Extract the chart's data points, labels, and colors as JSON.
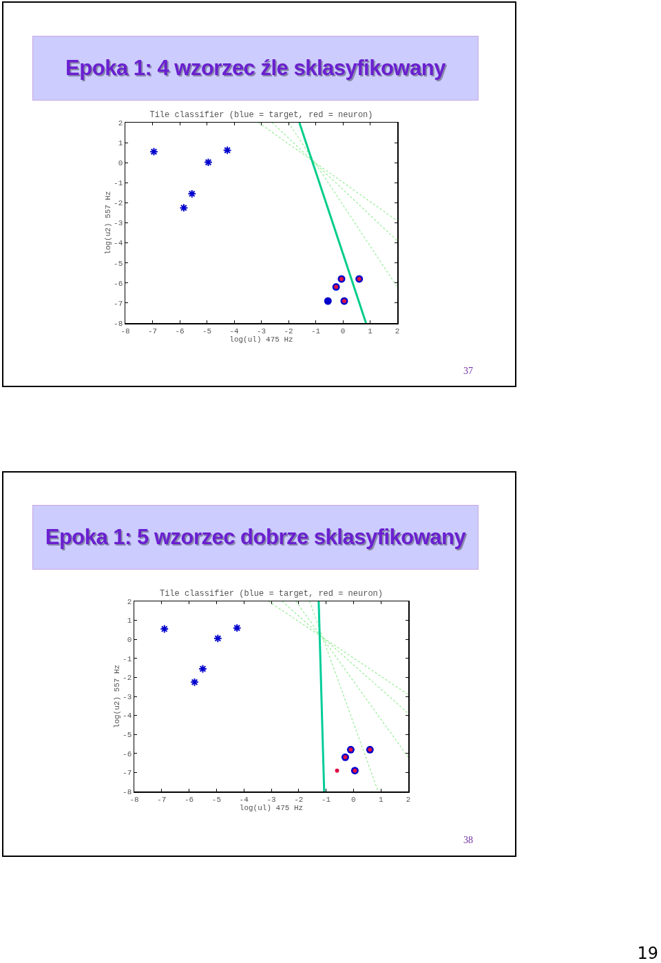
{
  "chart_data": [
    {
      "type": "scatter",
      "title": "Epoka 1: 4 wzorzec źle sklasyfikowany",
      "subtitle": "Tile classifier (blue = target, red = neuron)",
      "xlabel": "log(ul) 475 Hz",
      "ylabel": "log(u2) 557 Hz",
      "xlim": [
        -8,
        2
      ],
      "ylim": [
        -8,
        2
      ],
      "xticks": [
        -8,
        -7,
        -6,
        -5,
        -4,
        -3,
        -2,
        -1,
        0,
        1,
        2
      ],
      "yticks": [
        -8,
        -7,
        -6,
        -5,
        -4,
        -3,
        -2,
        -1,
        0,
        1,
        2
      ],
      "grid": false,
      "legend": false,
      "annotations": [
        "37"
      ],
      "series": [
        {
          "type": "line",
          "color": "#99ee99",
          "line_style": "dotted",
          "x": [
            -3.1,
            2
          ],
          "values": [
            2,
            -2.9
          ]
        },
        {
          "type": "line",
          "color": "#99ee99",
          "line_style": "dotted",
          "x": [
            -2.6,
            2
          ],
          "values": [
            2,
            -3.9
          ]
        },
        {
          "type": "line",
          "color": "#99ee99",
          "line_style": "dotted",
          "x": [
            -2.0,
            2
          ],
          "values": [
            2,
            -6.2
          ]
        },
        {
          "type": "line",
          "color": "#00cc88",
          "line_style": "solid",
          "x": [
            -1.6,
            0.85
          ],
          "values": [
            2,
            -8
          ]
        },
        {
          "type": "scatter",
          "color": "#0000cc",
          "marker": "cross",
          "x": [
            -6.95,
            -5.85,
            -5.55,
            -4.95,
            -4.25
          ],
          "values": [
            0.55,
            -2.25,
            -1.55,
            0.02,
            0.62
          ]
        },
        {
          "type": "scatter",
          "color": "#0000cc",
          "marker": "circle",
          "x": [
            -0.55,
            -0.05,
            -0.25,
            0.05,
            0.6
          ],
          "values": [
            -6.9,
            -5.8,
            -6.2,
            -6.9,
            -5.8
          ]
        },
        {
          "type": "scatter",
          "color": "#dd1144",
          "marker": "circle",
          "x": [
            -0.05,
            -0.25,
            0.05,
            0.6
          ],
          "values": [
            -5.8,
            -6.2,
            -6.9,
            -5.8
          ]
        }
      ]
    },
    {
      "type": "scatter",
      "title": "Epoka 1: 5 wzorzec dobrze sklasyfikowany",
      "subtitle": "Tile classifier (blue = target, red = neuron)",
      "xlabel": "log(ul) 475 Hz",
      "ylabel": "log(u2) 557 Hz",
      "xlim": [
        -8,
        2
      ],
      "ylim": [
        -8,
        2
      ],
      "xticks": [
        -8,
        -7,
        -6,
        -5,
        -4,
        -3,
        -2,
        -1,
        0,
        1,
        2
      ],
      "yticks": [
        -8,
        -7,
        -6,
        -5,
        -4,
        -3,
        -2,
        -1,
        0,
        1,
        2
      ],
      "grid": false,
      "legend": false,
      "annotations": [
        "38",
        "19"
      ],
      "series": [
        {
          "type": "line",
          "color": "#99ee99",
          "line_style": "dotted",
          "x": [
            -3.1,
            2
          ],
          "values": [
            2,
            -2.9
          ]
        },
        {
          "type": "line",
          "color": "#99ee99",
          "line_style": "dotted",
          "x": [
            -2.6,
            2
          ],
          "values": [
            2,
            -3.9
          ]
        },
        {
          "type": "line",
          "color": "#99ee99",
          "line_style": "dotted",
          "x": [
            -2.1,
            2
          ],
          "values": [
            2,
            -6.2
          ]
        },
        {
          "type": "line",
          "color": "#99ee99",
          "line_style": "dotted",
          "x": [
            -1.6,
            0.9
          ],
          "values": [
            2,
            -8
          ]
        },
        {
          "type": "line",
          "color": "#00cc99",
          "line_style": "solid",
          "x": [
            -1.27,
            -1.07
          ],
          "values": [
            2,
            -8
          ]
        },
        {
          "type": "scatter",
          "color": "#0000cc",
          "marker": "cross",
          "x": [
            -6.9,
            -5.8,
            -5.5,
            -4.95,
            -4.25
          ],
          "values": [
            0.55,
            -2.25,
            -1.55,
            0.05,
            0.6
          ]
        },
        {
          "type": "scatter",
          "color": "#0000cc",
          "marker": "circle",
          "x": [
            -0.1,
            -0.3,
            0.05,
            0.6
          ],
          "values": [
            -5.8,
            -6.2,
            -6.9,
            -5.8
          ]
        },
        {
          "type": "scatter",
          "color": "#dd1144",
          "marker": "circle",
          "x": [
            -0.6,
            -0.1,
            -0.3,
            0.05,
            0.6
          ],
          "values": [
            -6.9,
            -5.8,
            -6.2,
            -6.9,
            -5.8
          ]
        }
      ]
    }
  ]
}
